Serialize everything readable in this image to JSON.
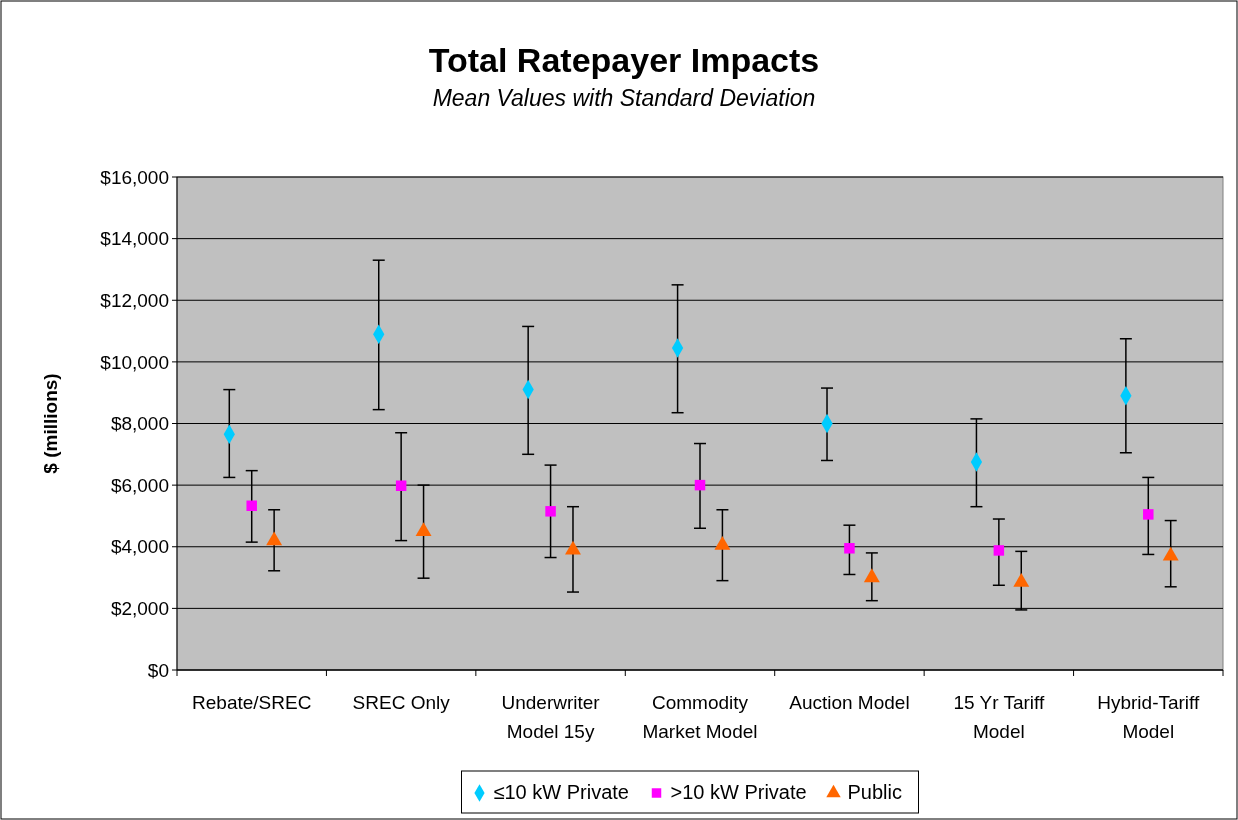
{
  "chart_data": {
    "type": "scatter",
    "title": "Total Ratepayer Impacts",
    "subtitle": "Mean Values with Standard Deviation",
    "ylabel": "$ (millions)",
    "categories": [
      "Rebate/SREC",
      "SREC Only",
      "Underwriter Model 15y",
      "Commodity Market Model",
      "Auction Model",
      "15 Yr Tariff Model",
      "Hybrid-Tariff Model"
    ],
    "series": [
      {
        "name": "≤10 kW Private",
        "color": "#00ccff",
        "marker": "diamond",
        "values": [
          7650,
          10900,
          9100,
          10450,
          8000,
          6750,
          8900
        ],
        "errors": [
          [
            6250,
            9100
          ],
          [
            8450,
            13300
          ],
          [
            7000,
            11150
          ],
          [
            8350,
            12500
          ],
          [
            6800,
            9150
          ],
          [
            5300,
            8150
          ],
          [
            7050,
            10750
          ]
        ]
      },
      {
        "name": ">10 kW Private",
        "color": "#ff00ff",
        "marker": "square",
        "values": [
          5330,
          5980,
          5150,
          6000,
          3950,
          3880,
          5050
        ],
        "errors": [
          [
            4150,
            6470
          ],
          [
            4200,
            7700
          ],
          [
            3650,
            6650
          ],
          [
            4600,
            7350
          ],
          [
            3100,
            4700
          ],
          [
            2750,
            4900
          ],
          [
            3750,
            6250
          ]
        ]
      },
      {
        "name": "Public",
        "color": "#ff6600",
        "marker": "triangle",
        "values": [
          4200,
          4500,
          3900,
          4050,
          3000,
          2850,
          3700
        ],
        "errors": [
          [
            3220,
            5200
          ],
          [
            2980,
            6000
          ],
          [
            2530,
            5300
          ],
          [
            2900,
            5200
          ],
          [
            2250,
            3800
          ],
          [
            1950,
            3850
          ],
          [
            2700,
            4850
          ]
        ]
      }
    ],
    "ylim": [
      0,
      16000
    ],
    "yticks": [
      {
        "value": 0,
        "label": "$0"
      },
      {
        "value": 2000,
        "label": "$2,000"
      },
      {
        "value": 4000,
        "label": "$4,000"
      },
      {
        "value": 6000,
        "label": "$6,000"
      },
      {
        "value": 8000,
        "label": "$8,000"
      },
      {
        "value": 10000,
        "label": "$10,000"
      },
      {
        "value": 12000,
        "label": "$12,000"
      },
      {
        "value": 14000,
        "label": "$14,000"
      },
      {
        "value": 16000,
        "label": "$16,000"
      }
    ],
    "grid": "y",
    "legend": "bottom"
  }
}
